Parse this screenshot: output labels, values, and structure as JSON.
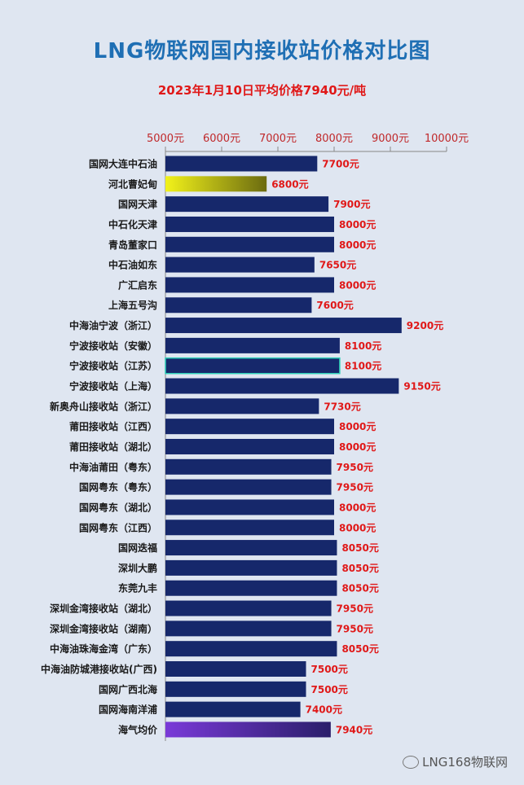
{
  "title": "LNG物联网国内接收站价格对比图",
  "subtitle": "2023年1月10日平均价格7940元/吨",
  "watermark": "LNG168物联网",
  "colors": {
    "bar": "#16286b",
    "bar_highlight_from": "#f2f21a",
    "bar_highlight_to": "#6b6b10",
    "bar_avg_from": "#7a3ad8",
    "bar_avg_to": "#2a1e6a",
    "label": "#e01818",
    "tick": "#c0282a"
  },
  "chart_data": {
    "type": "bar",
    "orientation": "horizontal",
    "xlim": [
      5000,
      10000
    ],
    "xticks": [
      "5000元",
      "6000元",
      "7000元",
      "8000元",
      "9000元",
      "10000元"
    ],
    "tick_values": [
      5000,
      6000,
      7000,
      8000,
      9000,
      10000
    ],
    "categories": [
      "国网大连中石油",
      "河北曹妃甸",
      "国网天津",
      "中石化天津",
      "青岛董家口",
      "中石油如东",
      "广汇启东",
      "上海五号沟",
      "中海油宁波（浙江）",
      "宁波接收站（安徽）",
      "宁波接收站（江苏）",
      "宁波接收站（上海）",
      "新奥舟山接收站（浙江）",
      "莆田接收站（江西）",
      "莆田接收站（湖北）",
      "中海油莆田（粤东）",
      "国网粤东（粤东）",
      "国网粤东（湖北）",
      "国网粤东（江西）",
      "国网迭福",
      "深圳大鹏",
      "东莞九丰",
      "深圳金湾接收站（湖北）",
      "深圳金湾接收站（湖南）",
      "中海油珠海金湾（广东）",
      "中海油防城港接收站(广西)",
      "国网广西北海",
      "国网海南洋浦",
      "海气均价"
    ],
    "values": [
      7700,
      6800,
      7900,
      8000,
      8000,
      7650,
      8000,
      7600,
      9200,
      8100,
      8100,
      9150,
      7730,
      8000,
      8000,
      7950,
      7950,
      8000,
      8000,
      8050,
      8050,
      8050,
      7950,
      7950,
      8050,
      7500,
      7500,
      7400,
      7940
    ],
    "value_labels": [
      "7700元",
      "6800元",
      "7900元",
      "8000元",
      "8000元",
      "7650元",
      "8000元",
      "7600元",
      "9200元",
      "8100元",
      "8100元",
      "9150元",
      "7730元",
      "8000元",
      "8000元",
      "7950元",
      "7950元",
      "8000元",
      "8000元",
      "8050元",
      "8050元",
      "8050元",
      "7950元",
      "7950元",
      "8050元",
      "7500元",
      "7500元",
      "7400元",
      "7940元"
    ],
    "highlight_index": 1,
    "average_index": 28,
    "outlined_index": 10,
    "grid": false
  }
}
